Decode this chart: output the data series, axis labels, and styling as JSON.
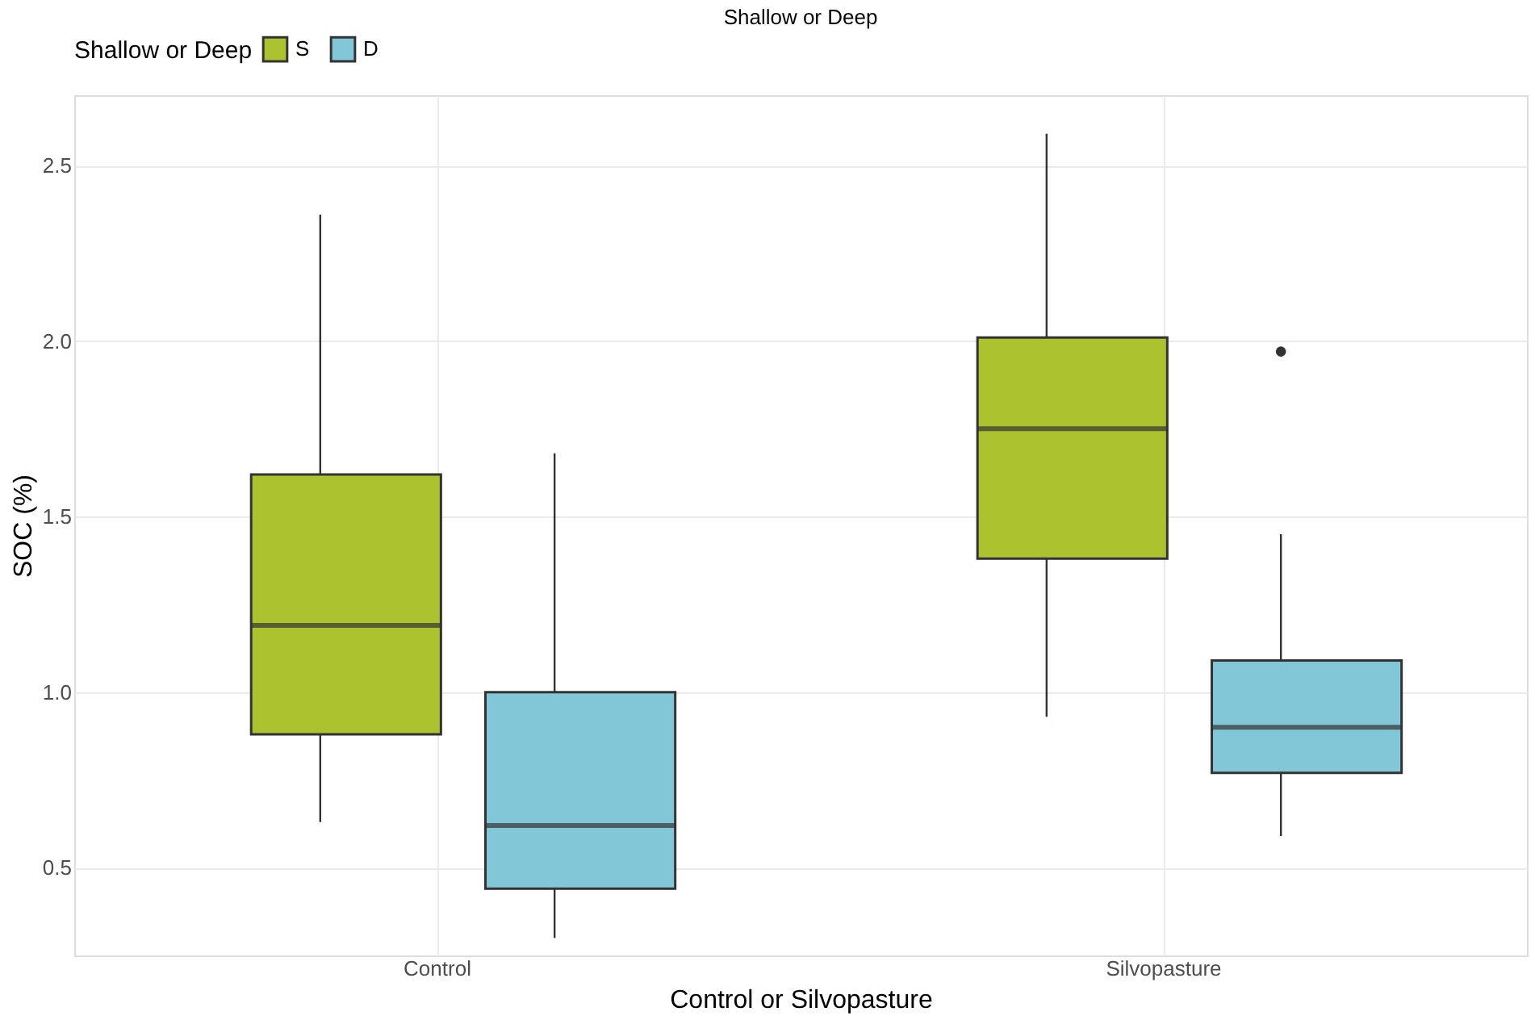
{
  "chart_data": {
    "type": "box",
    "title": "Shallow or Deep",
    "xlabel": "Control or Silvopasture",
    "ylabel": "SOC (%)",
    "legend_title": "Shallow or Deep",
    "categories": [
      "Control",
      "Silvopasture"
    ],
    "series": [
      {
        "name": "S",
        "color": "#adc22f",
        "boxes": [
          {
            "low": 0.63,
            "q1": 0.88,
            "median": 1.19,
            "q3": 1.62,
            "high": 2.36
          },
          {
            "low": 0.93,
            "q1": 1.38,
            "median": 1.75,
            "q3": 2.01,
            "high": 2.59
          }
        ]
      },
      {
        "name": "D",
        "color": "#82c7d8",
        "boxes": [
          {
            "low": 0.3,
            "q1": 0.44,
            "median": 0.62,
            "q3": 1.0,
            "high": 1.68
          },
          {
            "low": 0.59,
            "q1": 0.77,
            "median": 0.9,
            "q3": 1.09,
            "high": 1.45,
            "outliers": [
              1.97
            ]
          }
        ]
      }
    ],
    "ylim": [
      0.25,
      2.7
    ],
    "yticks": [
      0.5,
      {
        "value": 1,
        "label": "1.0"
      },
      1.5,
      {
        "value": 2,
        "label": "2.0"
      },
      2.5
    ],
    "grid": true,
    "legend": "top left"
  }
}
